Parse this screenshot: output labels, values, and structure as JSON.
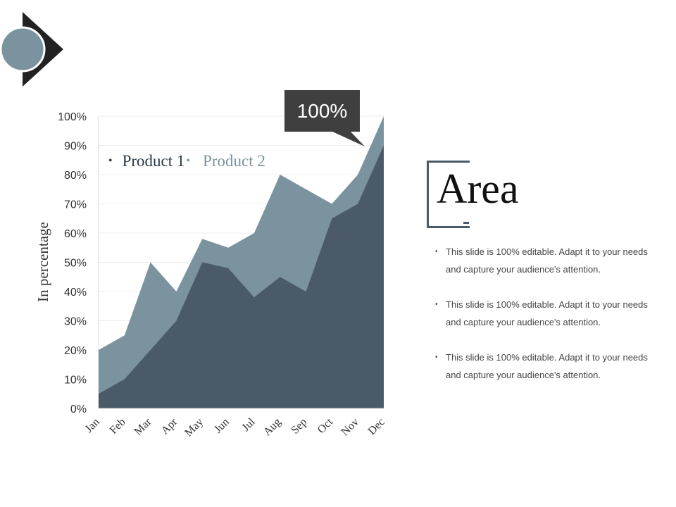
{
  "logo": {
    "icon": "circle-arrow-icon",
    "circle_color": "#7b939f",
    "arrow_color": "#222222"
  },
  "title": "Area",
  "bullets": [
    "This slide is 100% editable. Adapt it to your needs and capture your audience's attention.",
    "This slide is 100% editable. Adapt it to your needs and capture your audience's attention.",
    "This slide is 100% editable. Adapt it to your needs and capture your audience's attention."
  ],
  "callout": "100%",
  "colors": {
    "product1": "#4a5a68",
    "product2": "#7b939f"
  },
  "chart_data": {
    "type": "area",
    "categories": [
      "Jan",
      "Feb",
      "Mar",
      "Apr",
      "May",
      "Jun",
      "Jul",
      "Aug",
      "Sep",
      "Oct",
      "Nov",
      "Dec"
    ],
    "series": [
      {
        "name": "Product 1",
        "values": [
          5,
          10,
          20,
          30,
          50,
          48,
          38,
          45,
          40,
          65,
          70,
          90
        ]
      },
      {
        "name": "Product 2",
        "values": [
          20,
          25,
          50,
          40,
          58,
          55,
          60,
          80,
          75,
          70,
          80,
          100
        ]
      }
    ],
    "ylabel": "In percentage",
    "yticks": [
      "0%",
      "10%",
      "20%",
      "30%",
      "40%",
      "50%",
      "60%",
      "70%",
      "80%",
      "90%",
      "100%"
    ],
    "ylim": [
      0,
      100
    ],
    "grid": true,
    "legend": "top-left"
  }
}
